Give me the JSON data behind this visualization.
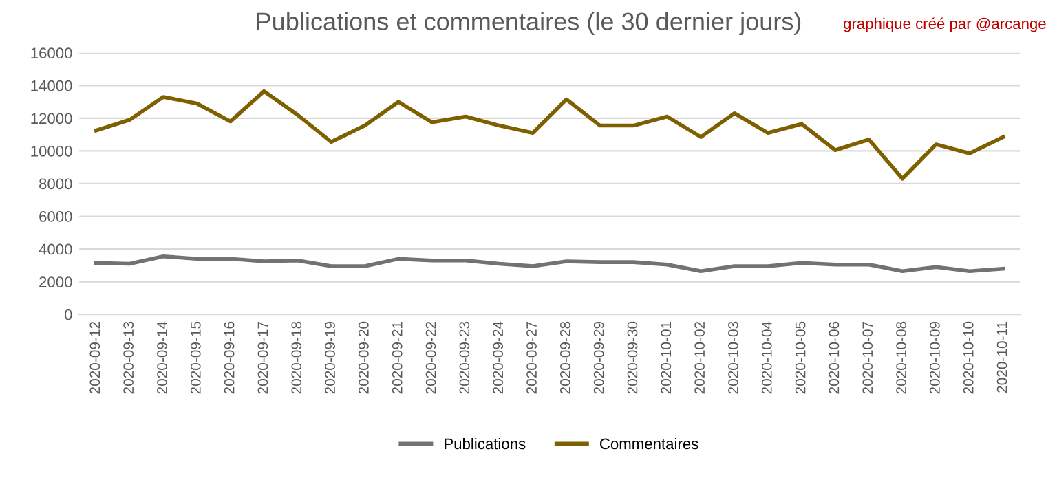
{
  "chart_data": {
    "type": "line",
    "title": "Publications et commentaires (le 30 dernier jours)",
    "annotations": [
      "graphique créé par @arcange"
    ],
    "categories": [
      "2020-09-12",
      "2020-09-13",
      "2020-09-14",
      "2020-09-15",
      "2020-09-16",
      "2020-09-17",
      "2020-09-18",
      "2020-09-19",
      "2020-09-20",
      "2020-09-21",
      "2020-09-22",
      "2020-09-23",
      "2020-09-24",
      "2020-09-27",
      "2020-09-28",
      "2020-09-29",
      "2020-09-30",
      "2020-10-01",
      "2020-10-02",
      "2020-10-03",
      "2020-10-04",
      "2020-10-05",
      "2020-10-06",
      "2020-10-07",
      "2020-10-08",
      "2020-10-09",
      "2020-10-10",
      "2020-10-11"
    ],
    "series": [
      {
        "name": "Publications",
        "color": "#767171",
        "values": [
          3150,
          3100,
          3550,
          3400,
          3400,
          3250,
          3300,
          2950,
          2950,
          3400,
          3300,
          3300,
          3100,
          2950,
          3250,
          3200,
          3200,
          3050,
          2650,
          2950,
          2950,
          3150,
          3050,
          3050,
          2650,
          2900,
          2650,
          2800
        ]
      },
      {
        "name": "Commentaires",
        "color": "#7f6000",
        "values": [
          11250,
          11900,
          13300,
          12900,
          11800,
          13650,
          12200,
          10550,
          11550,
          13000,
          11750,
          12100,
          11550,
          11100,
          13150,
          11550,
          11550,
          12100,
          10850,
          12300,
          11100,
          11650,
          10050,
          10700,
          8300,
          10400,
          9850,
          10850
        ]
      }
    ],
    "ylim": [
      0,
      16000
    ],
    "yticks": [
      0,
      2000,
      4000,
      6000,
      8000,
      10000,
      12000,
      14000,
      16000
    ],
    "grid": "y",
    "legend": "bottom",
    "marker": "none",
    "line_style": "solid"
  }
}
